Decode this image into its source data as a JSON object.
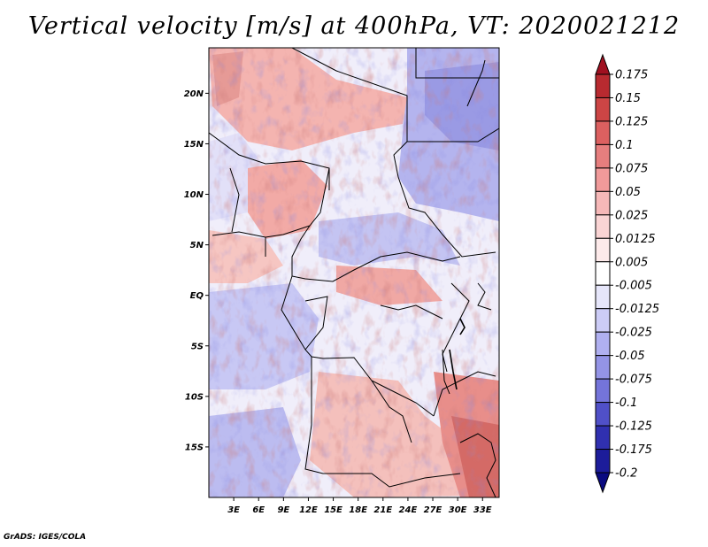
{
  "title": "Vertical velocity [m/s] at 400hPa, VT: 2020021212",
  "credit": "GrADS: IGES/COLA",
  "map": {
    "lon_range": [
      0,
      35
    ],
    "lat_range": [
      -20,
      24.5
    ],
    "lat_ticks": [
      "20N",
      "15N",
      "10N",
      "5N",
      "EQ",
      "5S",
      "10S",
      "15S"
    ],
    "lat_values": [
      20,
      15,
      10,
      5,
      0,
      -5,
      -10,
      -15
    ],
    "lon_ticks": [
      "3E",
      "6E",
      "9E",
      "12E",
      "15E",
      "18E",
      "21E",
      "24E",
      "27E",
      "30E",
      "33E"
    ],
    "lon_values": [
      3,
      6,
      9,
      12,
      15,
      18,
      21,
      24,
      27,
      30,
      33
    ]
  },
  "colorbar": {
    "labels": [
      "0.175",
      "0.15",
      "0.125",
      "0.1",
      "0.075",
      "0.05",
      "0.025",
      "0.0125",
      "0.005",
      "-0.005",
      "-0.0125",
      "-0.025",
      "-0.05",
      "-0.075",
      "-0.1",
      "-0.125",
      "-0.175",
      "-0.2"
    ],
    "colors": [
      "#a01020",
      "#b82a30",
      "#cc4545",
      "#dc6060",
      "#e67e7e",
      "#f09a9a",
      "#f6b8b8",
      "#fad4d4",
      "#fdeaea",
      "#ffffff",
      "#e6e6fa",
      "#ccccf6",
      "#b0b0f0",
      "#9494e6",
      "#7474da",
      "#5050c8",
      "#3030b0",
      "#1c1c9a",
      "#0a0a80"
    ]
  }
}
